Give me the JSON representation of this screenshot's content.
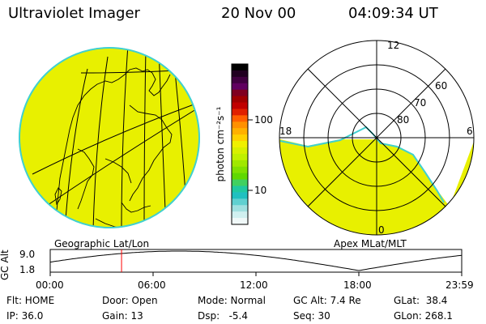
{
  "header": {
    "instrument": "Ultraviolet Imager",
    "date": "20 Nov 00",
    "time": "04:09:34 UT"
  },
  "colorbar": {
    "unit_label": "photon cm⁻²s⁻¹",
    "tick_labels": [
      "100",
      "10"
    ],
    "colors": [
      "#000000",
      "#200020",
      "#400040",
      "#600060",
      "#800020",
      "#a00000",
      "#c00000",
      "#e02000",
      "#ff6000",
      "#ff9000",
      "#ffb000",
      "#ffd000",
      "#f0f000",
      "#d8f000",
      "#c0f000",
      "#a0e800",
      "#80e000",
      "#60d800",
      "#40d060",
      "#20c8a0",
      "#20c0c0",
      "#60d0d0",
      "#a0e0e0",
      "#d0f0f0",
      "#f0f8f8"
    ]
  },
  "left_panel": {
    "label": "Geographic Lat/Lon",
    "fill_color": "#e8f000",
    "rim_color": "#40d0d0"
  },
  "right_panel": {
    "label": "Apex MLat/MLT",
    "mlt_labels": {
      "top": "12",
      "right": "6",
      "bottom": "0",
      "left": "18"
    },
    "lat_labels": [
      "60",
      "70",
      "80"
    ],
    "fill_color": "#e8f000",
    "rim_color": "#40d0d0"
  },
  "altitude_plot": {
    "ylabel": "GC Alt",
    "yticks": [
      "9.0",
      "1.8"
    ],
    "xticks": [
      "00:00",
      "06:00",
      "12:00",
      "18:00",
      "23:59"
    ],
    "marker_color": "#ff0000",
    "current_time_hours": 4.16
  },
  "status": {
    "flt": "Flt: HOME",
    "ip": "IP: 36.0",
    "door": "Door: Open",
    "gain": "Gain: 13",
    "mode": "Mode: Normal",
    "dsp": "Dsp:   -5.4",
    "gc_alt": "GC Alt: 7.4 Re",
    "seq": "Seq: 30",
    "glat": "GLat:  38.4",
    "glon": "GLon: 268.1"
  }
}
